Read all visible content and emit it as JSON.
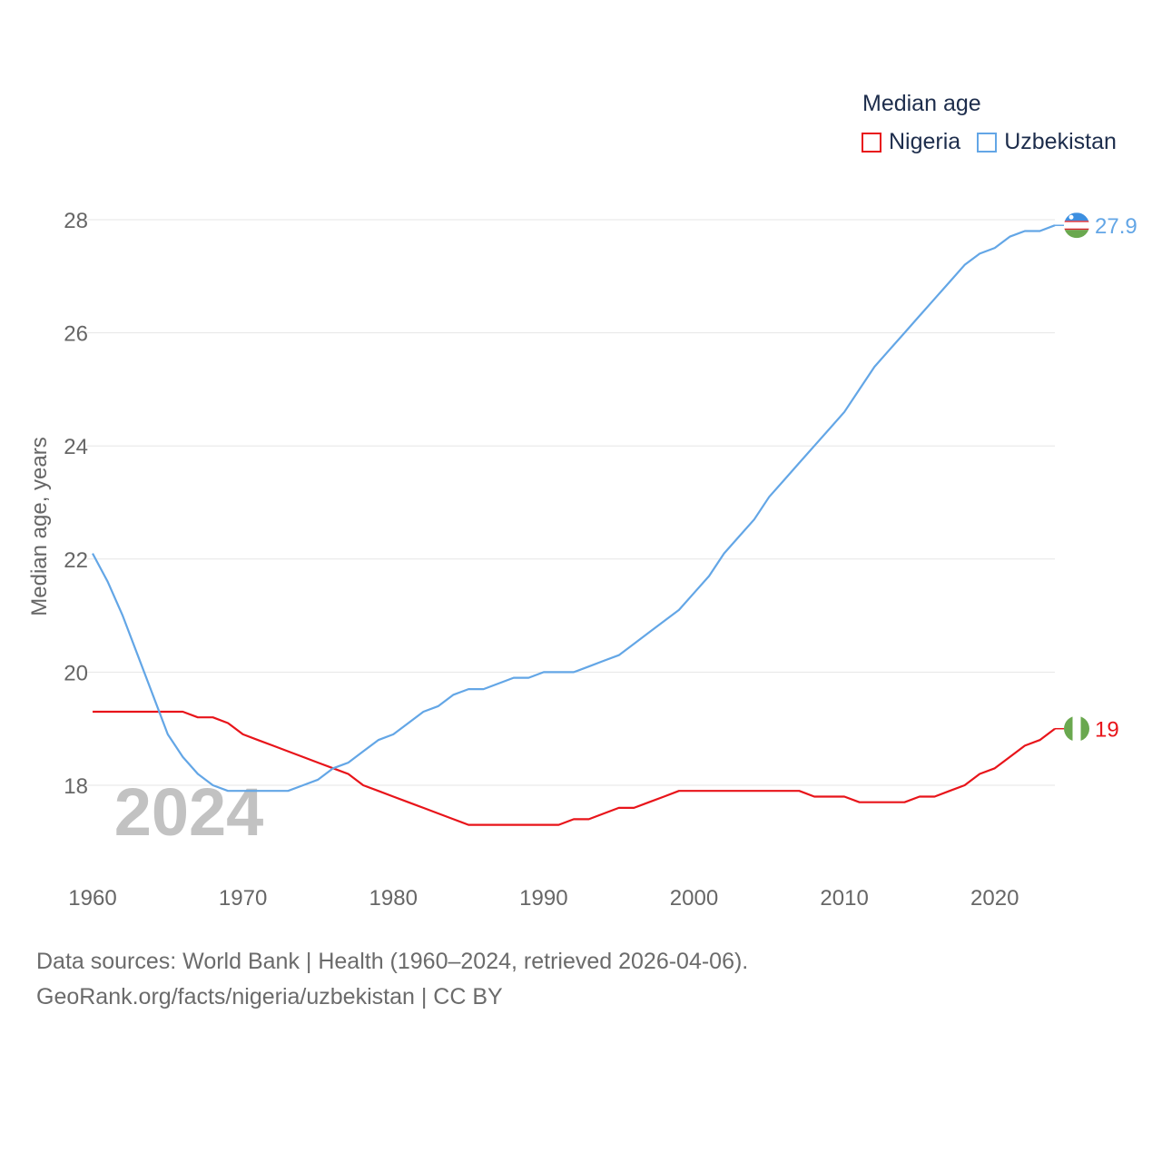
{
  "legend": {
    "title": "Median age",
    "items": [
      {
        "name": "Nigeria",
        "color": "#e8141a"
      },
      {
        "name": "Uzbekistan",
        "color": "#63a6e6"
      }
    ]
  },
  "year_watermark": "2024",
  "footer": {
    "line1": "Data sources: World Bank | Health (1960–2024, retrieved 2026-04-06).",
    "line2": "GeoRank.org/facts/nigeria/uzbekistan | CC BY"
  },
  "chart_data": {
    "type": "line",
    "title": "Median age",
    "xlabel": "",
    "ylabel": "Median age, years",
    "xlim": [
      1960,
      2024
    ],
    "ylim": [
      17,
      28.3
    ],
    "y_ticks": [
      18,
      20,
      22,
      24,
      26,
      28
    ],
    "x_ticks": [
      1960,
      1970,
      1980,
      1990,
      2000,
      2010,
      2020
    ],
    "grid": true,
    "legend_position": "top-right",
    "series": [
      {
        "name": "Nigeria",
        "color": "#e8141a",
        "end_label": "19",
        "flag": "nigeria-flag",
        "x": [
          1960,
          1961,
          1962,
          1963,
          1964,
          1965,
          1966,
          1967,
          1968,
          1969,
          1970,
          1971,
          1972,
          1973,
          1974,
          1975,
          1976,
          1977,
          1978,
          1979,
          1980,
          1981,
          1982,
          1983,
          1984,
          1985,
          1986,
          1987,
          1988,
          1989,
          1990,
          1991,
          1992,
          1993,
          1994,
          1995,
          1996,
          1997,
          1998,
          1999,
          2000,
          2001,
          2002,
          2003,
          2004,
          2005,
          2006,
          2007,
          2008,
          2009,
          2010,
          2011,
          2012,
          2013,
          2014,
          2015,
          2016,
          2017,
          2018,
          2019,
          2020,
          2021,
          2022,
          2023,
          2024
        ],
        "values": [
          19.3,
          19.3,
          19.3,
          19.3,
          19.3,
          19.3,
          19.3,
          19.2,
          19.2,
          19.1,
          18.9,
          18.8,
          18.7,
          18.6,
          18.5,
          18.4,
          18.3,
          18.2,
          18.0,
          17.9,
          17.8,
          17.7,
          17.6,
          17.5,
          17.4,
          17.3,
          17.3,
          17.3,
          17.3,
          17.3,
          17.3,
          17.3,
          17.4,
          17.4,
          17.5,
          17.6,
          17.6,
          17.7,
          17.8,
          17.9,
          17.9,
          17.9,
          17.9,
          17.9,
          17.9,
          17.9,
          17.9,
          17.9,
          17.8,
          17.8,
          17.8,
          17.7,
          17.7,
          17.7,
          17.7,
          17.8,
          17.8,
          17.9,
          18.0,
          18.2,
          18.3,
          18.5,
          18.7,
          18.8,
          19.0
        ]
      },
      {
        "name": "Uzbekistan",
        "color": "#63a6e6",
        "end_label": "27.9",
        "flag": "uzbekistan-flag",
        "x": [
          1960,
          1961,
          1962,
          1963,
          1964,
          1965,
          1966,
          1967,
          1968,
          1969,
          1970,
          1971,
          1972,
          1973,
          1974,
          1975,
          1976,
          1977,
          1978,
          1979,
          1980,
          1981,
          1982,
          1983,
          1984,
          1985,
          1986,
          1987,
          1988,
          1989,
          1990,
          1991,
          1992,
          1993,
          1994,
          1995,
          1996,
          1997,
          1998,
          1999,
          2000,
          2001,
          2002,
          2003,
          2004,
          2005,
          2006,
          2007,
          2008,
          2009,
          2010,
          2011,
          2012,
          2013,
          2014,
          2015,
          2016,
          2017,
          2018,
          2019,
          2020,
          2021,
          2022,
          2023,
          2024
        ],
        "values": [
          22.1,
          21.6,
          21.0,
          20.3,
          19.6,
          18.9,
          18.5,
          18.2,
          18.0,
          17.9,
          17.9,
          17.9,
          17.9,
          17.9,
          18.0,
          18.1,
          18.3,
          18.4,
          18.6,
          18.8,
          18.9,
          19.1,
          19.3,
          19.4,
          19.6,
          19.7,
          19.7,
          19.8,
          19.9,
          19.9,
          20.0,
          20.0,
          20.0,
          20.1,
          20.2,
          20.3,
          20.5,
          20.7,
          20.9,
          21.1,
          21.4,
          21.7,
          22.1,
          22.4,
          22.7,
          23.1,
          23.4,
          23.7,
          24.0,
          24.3,
          24.6,
          25.0,
          25.4,
          25.7,
          26.0,
          26.3,
          26.6,
          26.9,
          27.2,
          27.4,
          27.5,
          27.7,
          27.8,
          27.8,
          27.9
        ]
      }
    ]
  }
}
